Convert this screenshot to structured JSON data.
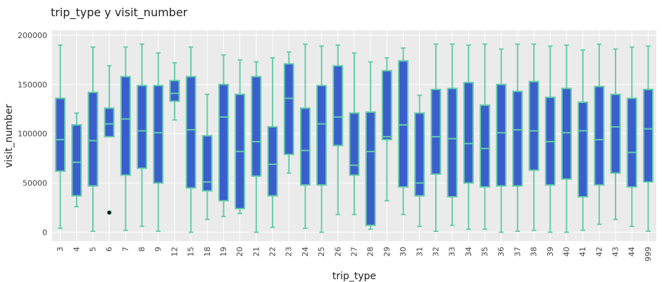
{
  "chart_data": {
    "type": "box",
    "title": "trip_type  y  visit_number",
    "xlabel": "trip_type",
    "ylabel": "visit_number",
    "ylim": [
      -9000,
      205000
    ],
    "yticks": [
      0,
      50000,
      100000,
      150000,
      200000
    ],
    "ytick_labels": [
      "0",
      "50000",
      "100000",
      "150000",
      "200000"
    ],
    "grid": true,
    "colors": {
      "panel": "#ebebeb",
      "grid": "#ffffff",
      "box_fill": "#3a5fcd",
      "box_line": "#66cdaa",
      "outlier": "#000000"
    },
    "categories": [
      "3",
      "4",
      "5",
      "6",
      "7",
      "8",
      "9",
      "12",
      "15",
      "18",
      "19",
      "20",
      "21",
      "22",
      "23",
      "24",
      "25",
      "26",
      "27",
      "28",
      "29",
      "30",
      "31",
      "32",
      "33",
      "34",
      "35",
      "36",
      "37",
      "38",
      "39",
      "40",
      "41",
      "42",
      "43",
      "44",
      "999"
    ],
    "boxes": [
      {
        "min": 4000,
        "q1": 62000,
        "median": 94000,
        "q3": 136000,
        "max": 190000
      },
      {
        "min": 26000,
        "q1": 37000,
        "median": 71000,
        "q3": 109000,
        "max": 121000
      },
      {
        "min": 1000,
        "q1": 47000,
        "median": 93000,
        "q3": 142000,
        "max": 188000
      },
      {
        "min": 97000,
        "q1": 97000,
        "median": 110000,
        "q3": 126000,
        "max": 169000,
        "outliers": [
          20000
        ]
      },
      {
        "min": 2000,
        "q1": 58000,
        "median": 115000,
        "q3": 158000,
        "max": 188000
      },
      {
        "min": 6000,
        "q1": 65000,
        "median": 103000,
        "q3": 149000,
        "max": 191000
      },
      {
        "min": 1000,
        "q1": 50000,
        "median": 101000,
        "q3": 149000,
        "max": 182000
      },
      {
        "min": 114000,
        "q1": 133000,
        "median": 141000,
        "q3": 154000,
        "max": 172000
      },
      {
        "min": 0,
        "q1": 45000,
        "median": 104000,
        "q3": 158000,
        "max": 188000
      },
      {
        "min": 13000,
        "q1": 42000,
        "median": 51000,
        "q3": 98000,
        "max": 140000
      },
      {
        "min": 16000,
        "q1": 32000,
        "median": 117000,
        "q3": 150000,
        "max": 180000
      },
      {
        "min": 19000,
        "q1": 24000,
        "median": 82000,
        "q3": 140000,
        "max": 175000
      },
      {
        "min": 0,
        "q1": 57000,
        "median": 92000,
        "q3": 158000,
        "max": 173000
      },
      {
        "min": 5000,
        "q1": 37000,
        "median": 69000,
        "q3": 107000,
        "max": 177000
      },
      {
        "min": 60000,
        "q1": 79000,
        "median": 136000,
        "q3": 171000,
        "max": 183000
      },
      {
        "min": 4000,
        "q1": 48000,
        "median": 83000,
        "q3": 126000,
        "max": 191000
      },
      {
        "min": 0,
        "q1": 48000,
        "median": 110000,
        "q3": 149000,
        "max": 189000
      },
      {
        "min": 18000,
        "q1": 88000,
        "median": 117000,
        "q3": 169000,
        "max": 190000
      },
      {
        "min": 18000,
        "q1": 58000,
        "median": 68000,
        "q3": 121000,
        "max": 182000
      },
      {
        "min": 3000,
        "q1": 7000,
        "median": 82000,
        "q3": 122000,
        "max": 173000
      },
      {
        "min": 32000,
        "q1": 94000,
        "median": 97000,
        "q3": 164000,
        "max": 177000
      },
      {
        "min": 18000,
        "q1": 46000,
        "median": 109000,
        "q3": 174000,
        "max": 187000
      },
      {
        "min": 6000,
        "q1": 37000,
        "median": 50000,
        "q3": 121000,
        "max": 139000
      },
      {
        "min": 1000,
        "q1": 59000,
        "median": 97000,
        "q3": 145000,
        "max": 191000
      },
      {
        "min": 7000,
        "q1": 36000,
        "median": 95000,
        "q3": 146000,
        "max": 191000
      },
      {
        "min": 3000,
        "q1": 50000,
        "median": 90000,
        "q3": 152000,
        "max": 190000
      },
      {
        "min": 3000,
        "q1": 46000,
        "median": 85000,
        "q3": 129000,
        "max": 191000
      },
      {
        "min": 0,
        "q1": 47000,
        "median": 101000,
        "q3": 150000,
        "max": 186000
      },
      {
        "min": 1000,
        "q1": 47000,
        "median": 104000,
        "q3": 143000,
        "max": 191000
      },
      {
        "min": 2000,
        "q1": 63000,
        "median": 103000,
        "q3": 153000,
        "max": 191000
      },
      {
        "min": 0,
        "q1": 48000,
        "median": 92000,
        "q3": 137000,
        "max": 189000
      },
      {
        "min": 0,
        "q1": 54000,
        "median": 101000,
        "q3": 146000,
        "max": 190000
      },
      {
        "min": 2000,
        "q1": 36000,
        "median": 103000,
        "q3": 132000,
        "max": 185000
      },
      {
        "min": 8000,
        "q1": 48000,
        "median": 94000,
        "q3": 148000,
        "max": 191000
      },
      {
        "min": 13000,
        "q1": 60000,
        "median": 107000,
        "q3": 140000,
        "max": 186000
      },
      {
        "min": 6000,
        "q1": 46000,
        "median": 81000,
        "q3": 136000,
        "max": 188000
      },
      {
        "min": 1000,
        "q1": 51000,
        "median": 105000,
        "q3": 145000,
        "max": 189000
      }
    ]
  }
}
